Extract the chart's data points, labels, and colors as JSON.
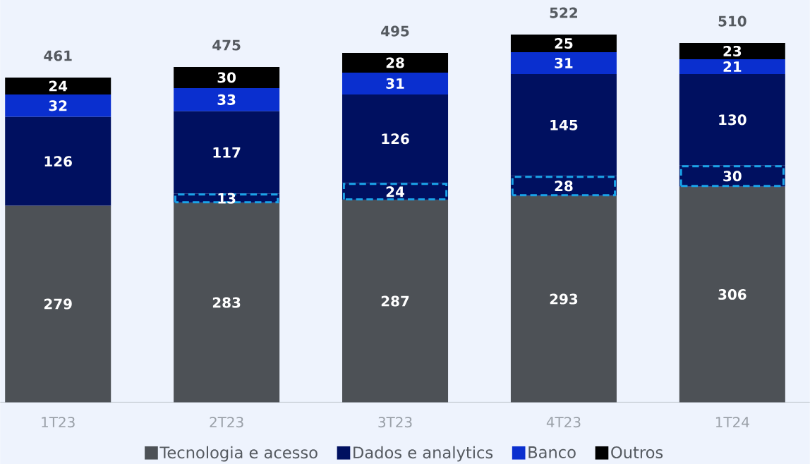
{
  "chart_data": {
    "type": "bar",
    "stacked": true,
    "categories": [
      "1T23",
      "2T23",
      "3T23",
      "4T23",
      "1T24"
    ],
    "series": [
      {
        "name": "Tecnologia e acesso",
        "color": "#4d5156",
        "values": [
          279,
          283,
          287,
          293,
          306
        ]
      },
      {
        "color": "#001060",
        "line_style": "dashed",
        "values": [
          null,
          13,
          24,
          28,
          30
        ]
      },
      {
        "name": "Dados e analytics",
        "color": "#001060",
        "values": [
          126,
          117,
          126,
          145,
          130
        ]
      },
      {
        "name": "Banco",
        "color": "#0a2fcf",
        "values": [
          32,
          33,
          31,
          31,
          21
        ]
      },
      {
        "name": "Outros",
        "color": "#000000",
        "values": [
          24,
          30,
          28,
          25,
          23
        ]
      }
    ],
    "totals": [
      "461",
      "475",
      "495",
      "522",
      "510"
    ],
    "data_labels": true,
    "legend": "bottom"
  }
}
